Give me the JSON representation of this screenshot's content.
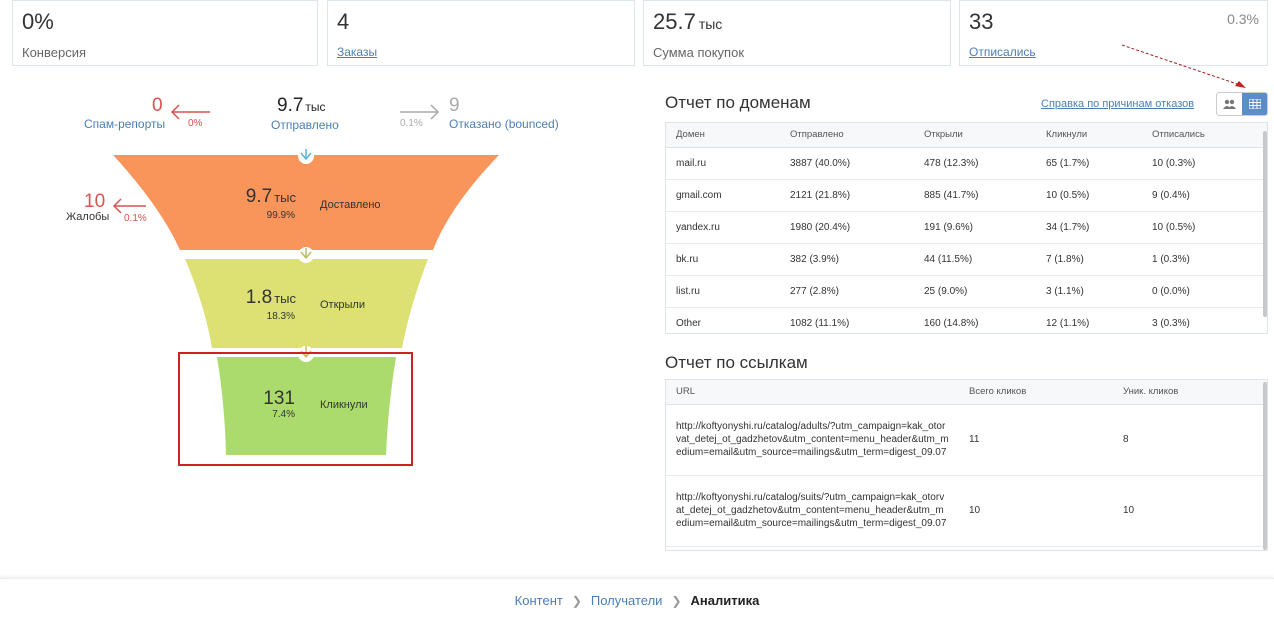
{
  "stats": [
    {
      "value": "0%",
      "unit": "",
      "label": "Конверсия",
      "pct": ""
    },
    {
      "value": "4",
      "unit": "",
      "label": "Заказы",
      "pct": ""
    },
    {
      "value": "25.7",
      "unit": "тыс",
      "label": "Сумма покупок",
      "pct": ""
    },
    {
      "value": "33",
      "unit": "",
      "label": "Отписались",
      "pct": "0.3%"
    }
  ],
  "funnel": {
    "spam": {
      "value": "0",
      "label": "Спам-репорты",
      "pct": "0%"
    },
    "sent": {
      "value": "9.7",
      "unit": "тыс",
      "label": "Отправлено"
    },
    "bounced": {
      "value": "9",
      "label": "Отказано (bounced)",
      "pct": "0.1%"
    },
    "complaints": {
      "value": "10",
      "label": "Жалобы",
      "pct": "0.1%"
    },
    "stages": [
      {
        "value": "9.7",
        "unit": "тыс",
        "pct": "99.9%",
        "label": "Доставлено",
        "color": "#f9945a"
      },
      {
        "value": "1.8",
        "unit": "тыс",
        "pct": "18.3%",
        "label": "Открыли",
        "color": "#dde173"
      },
      {
        "value": "131",
        "unit": "",
        "pct": "7.4%",
        "label": "Кликнули",
        "color": "#abdb6c"
      }
    ]
  },
  "domains": {
    "title": "Отчет по доменам",
    "help_link": "Справка по причинам отказов",
    "columns": [
      "Домен",
      "Отправлено",
      "Открыли",
      "Кликнули",
      "Отписались"
    ],
    "rows": [
      [
        "mail.ru",
        "3887 (40.0%)",
        "478 (12.3%)",
        "65 (1.7%)",
        "10 (0.3%)"
      ],
      [
        "gmail.com",
        "2121 (21.8%)",
        "885 (41.7%)",
        "10 (0.5%)",
        "9 (0.4%)"
      ],
      [
        "yandex.ru",
        "1980 (20.4%)",
        "191 (9.6%)",
        "34 (1.7%)",
        "10 (0.5%)"
      ],
      [
        "bk.ru",
        "382 (3.9%)",
        "44 (11.5%)",
        "7 (1.8%)",
        "1 (0.3%)"
      ],
      [
        "list.ru",
        "277 (2.8%)",
        "25 (9.0%)",
        "3 (1.1%)",
        "0 (0.0%)"
      ],
      [
        "Other",
        "1082 (11.1%)",
        "160 (14.8%)",
        "12 (1.1%)",
        "3 (0.3%)"
      ]
    ]
  },
  "links": {
    "title": "Отчет по ссылкам",
    "columns": [
      "URL",
      "Всего кликов",
      "Уник. кликов"
    ],
    "rows": [
      [
        "http://koftyonyshi.ru/catalog/adults/?utm_campaign=kak_otorvat_detej_ot_gadzhetov&utm_content=menu_header&utm_medium=email&utm_source=mailings&utm_term=digest_09.07",
        "11",
        "8"
      ],
      [
        "http://koftyonyshi.ru/catalog/suits/?utm_campaign=kak_otorvat_detej_ot_gadzhetov&utm_content=menu_header&utm_medium=email&utm_source=mailings&utm_term=digest_09.07",
        "10",
        "10"
      ]
    ]
  },
  "breadcrumb": [
    "Контент",
    "Получатели",
    "Аналитика"
  ],
  "colors": {
    "accent": "#4a7fb5",
    "danger": "#d9534f",
    "highlight": "#cc2222"
  }
}
